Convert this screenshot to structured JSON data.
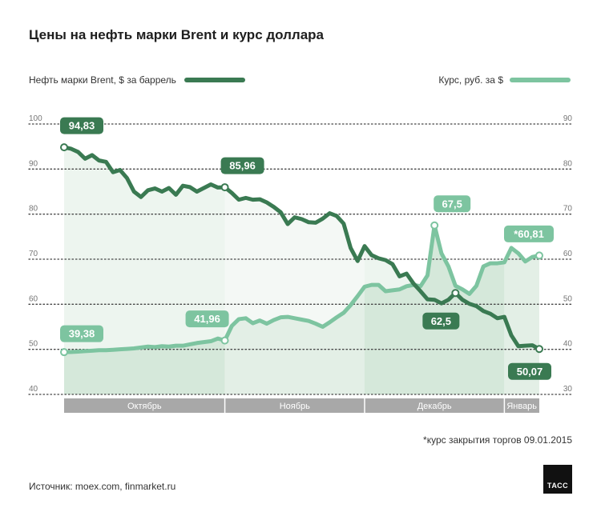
{
  "title": "Цены на нефть марки Brent и курс доллара",
  "legend": {
    "brent": "Нефть марки Brent, $ за баррель",
    "rub": "Курс, руб. за $"
  },
  "footnote": "*курс закрытия торгов 09.01.2015",
  "source": "Источник: moex.com, finmarket.ru",
  "logo_text": "ТАСС",
  "colors": {
    "brent": "#3a7a52",
    "rub": "#7dc4a0",
    "month_bar": "#a8a8a8",
    "fill_dark": "#d6e8dc",
    "fill_light": "#eef5f0"
  },
  "chart_data": {
    "type": "line",
    "months": [
      "Октябрь",
      "Ноябрь",
      "Декабрь",
      "Январь"
    ],
    "month_bounds": [
      0,
      23,
      43,
      63,
      69
    ],
    "left_axis": {
      "label": "",
      "ticks": [
        "40",
        "50",
        "60",
        "70",
        "80",
        "90",
        "100"
      ],
      "range": [
        40,
        100
      ]
    },
    "right_axis": {
      "label": "",
      "ticks": [
        "30",
        "40",
        "50",
        "60",
        "70",
        "80",
        "90"
      ],
      "range": [
        30,
        90
      ]
    },
    "series": [
      {
        "name": "Нефть марки Brent, $ за баррель",
        "axis": "left",
        "values": [
          94.83,
          94.5,
          93.8,
          92.3,
          93.1,
          91.9,
          91.6,
          89.3,
          89.8,
          88.0,
          85.0,
          83.8,
          85.3,
          85.7,
          85.0,
          85.8,
          84.3,
          86.3,
          86.0,
          85.0,
          85.8,
          86.6,
          85.9,
          85.96,
          84.7,
          83.2,
          83.6,
          83.2,
          83.3,
          82.6,
          81.6,
          80.4,
          77.8,
          79.3,
          78.9,
          78.2,
          78.1,
          79.0,
          80.2,
          79.6,
          77.9,
          72.5,
          69.6,
          72.9,
          70.9,
          70.2,
          69.8,
          68.9,
          66.2,
          66.8,
          64.6,
          62.9,
          61.1,
          61.0,
          60.2,
          61.0,
          62.5,
          61.0,
          60.1,
          59.6,
          58.5,
          57.9,
          56.9,
          57.2,
          53.1,
          50.7,
          50.8,
          50.9,
          50.07
        ],
        "labels": [
          {
            "i": 0,
            "text": "94,83"
          },
          {
            "i": 23,
            "text": "85,96"
          },
          {
            "i": 56,
            "text": "62,5"
          },
          {
            "i": 68,
            "text": "50,07"
          }
        ]
      },
      {
        "name": "Курс, руб. за $",
        "axis": "right",
        "values": [
          39.38,
          39.4,
          39.5,
          39.6,
          39.7,
          39.8,
          39.8,
          39.9,
          40.0,
          40.1,
          40.2,
          40.4,
          40.6,
          40.5,
          40.7,
          40.6,
          40.8,
          40.8,
          41.1,
          41.4,
          41.6,
          41.8,
          42.4,
          41.96,
          45.2,
          46.7,
          46.9,
          45.8,
          46.4,
          45.7,
          46.5,
          47.1,
          47.2,
          46.9,
          46.6,
          46.3,
          45.7,
          45.0,
          46.0,
          47.1,
          48.1,
          49.8,
          51.8,
          53.9,
          54.3,
          54.3,
          52.9,
          53.1,
          53.3,
          54.0,
          54.3,
          54.0,
          56.4,
          67.5,
          61.3,
          58.4,
          54.1,
          53.3,
          52.3,
          54.1,
          58.4,
          59.1,
          59.1,
          59.3,
          62.5,
          61.3,
          59.5,
          60.5,
          60.81
        ],
        "labels": [
          {
            "i": 0,
            "text": "39,38"
          },
          {
            "i": 23,
            "text": "41,96"
          },
          {
            "i": 53,
            "text": "67,5"
          },
          {
            "i": 68,
            "text": "*60,81"
          }
        ]
      }
    ]
  }
}
